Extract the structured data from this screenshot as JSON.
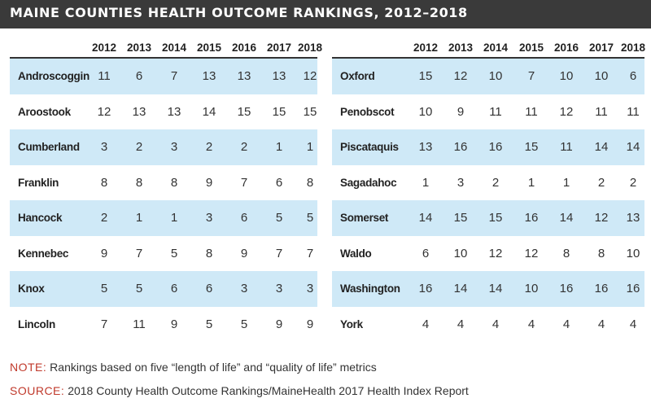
{
  "title": "MAINE COUNTIES HEALTH OUTCOME RANKINGS, 2012–2018",
  "colors": {
    "title_bg": "#3a3a3a",
    "row_shade": "#cfe9f7",
    "note_accent": "#c0392b"
  },
  "chart_data": {
    "type": "table",
    "title": "MAINE COUNTIES HEALTH OUTCOME RANKINGS, 2012–2018",
    "columns": [
      "2012",
      "2013",
      "2014",
      "2015",
      "2016",
      "2017",
      "2018"
    ],
    "panels": [
      {
        "rows": [
          {
            "county": "Androscoggin",
            "values": [
              11,
              6,
              7,
              13,
              13,
              13,
              12
            ]
          },
          {
            "county": "Aroostook",
            "values": [
              12,
              13,
              13,
              14,
              15,
              15,
              15
            ]
          },
          {
            "county": "Cumberland",
            "values": [
              3,
              2,
              3,
              2,
              2,
              1,
              1
            ]
          },
          {
            "county": "Franklin",
            "values": [
              8,
              8,
              8,
              9,
              7,
              6,
              8
            ]
          },
          {
            "county": "Hancock",
            "values": [
              2,
              1,
              1,
              3,
              6,
              5,
              5
            ]
          },
          {
            "county": "Kennebec",
            "values": [
              9,
              7,
              5,
              8,
              9,
              7,
              7
            ]
          },
          {
            "county": "Knox",
            "values": [
              5,
              5,
              6,
              6,
              3,
              3,
              3
            ]
          },
          {
            "county": "Lincoln",
            "values": [
              7,
              11,
              9,
              5,
              5,
              9,
              9
            ]
          }
        ]
      },
      {
        "rows": [
          {
            "county": "Oxford",
            "values": [
              15,
              12,
              10,
              7,
              10,
              10,
              6
            ]
          },
          {
            "county": "Penobscot",
            "values": [
              10,
              9,
              11,
              11,
              12,
              11,
              11
            ]
          },
          {
            "county": "Piscataquis",
            "values": [
              13,
              16,
              16,
              15,
              11,
              14,
              14
            ]
          },
          {
            "county": "Sagadahoc",
            "values": [
              1,
              3,
              2,
              1,
              1,
              2,
              2
            ]
          },
          {
            "county": "Somerset",
            "values": [
              14,
              15,
              15,
              16,
              14,
              12,
              13
            ]
          },
          {
            "county": "Waldo",
            "values": [
              6,
              10,
              12,
              12,
              8,
              8,
              10
            ]
          },
          {
            "county": "Washington",
            "values": [
              16,
              14,
              14,
              10,
              16,
              16,
              16
            ]
          },
          {
            "county": "York",
            "values": [
              4,
              4,
              4,
              4,
              4,
              4,
              4
            ]
          }
        ]
      }
    ]
  },
  "note": {
    "label": "NOTE:",
    "text": "Rankings based on five “length of life” and “quality of life” metrics"
  },
  "source": {
    "label": "SOURCE:",
    "text": "2018 County Health Outcome Rankings/MaineHealth 2017 Health Index Report"
  }
}
